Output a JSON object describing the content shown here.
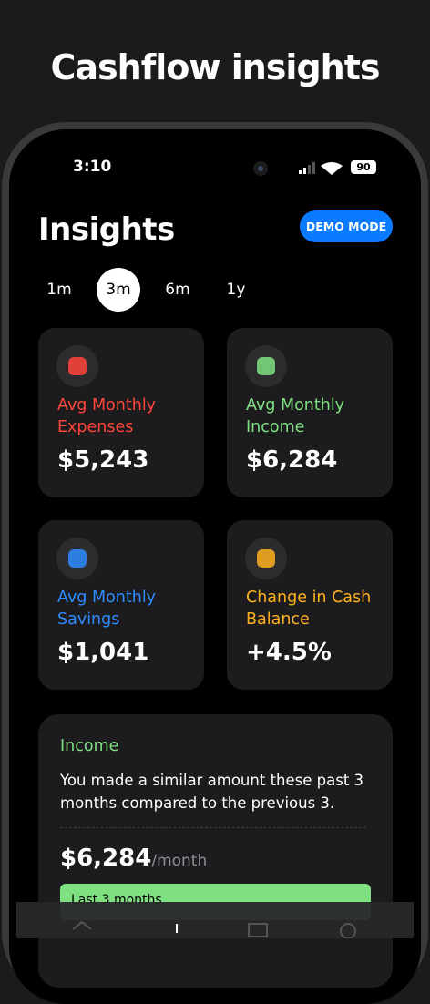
{
  "header": {
    "title": "Cashflow insights"
  },
  "status_bar": {
    "time": "3:10",
    "battery": "90"
  },
  "screen": {
    "title": "Insights",
    "mode_button": "DEMO MODE",
    "periods": [
      "1m",
      "3m",
      "6m",
      "1y"
    ],
    "selected_period": 1,
    "cards": [
      {
        "label": "Avg Monthly Expenses",
        "value": "$5,243",
        "color": "#ff453a"
      },
      {
        "label": "Avg Monthly Income",
        "value": "$6,284",
        "color": "#7ee081"
      },
      {
        "label": "Avg Monthly Savings",
        "value": "$1,041",
        "color": "#2f8cff"
      },
      {
        "label": "Change in Cash Balance",
        "value": "+4.5%",
        "color": "#ffb020"
      }
    ],
    "income": {
      "label": "Income",
      "text": "You made a similar amount these past 3 months compared to the previous 3.",
      "amount": "$6,284",
      "unit": "/month",
      "bar_label": "Last 3 months"
    }
  }
}
